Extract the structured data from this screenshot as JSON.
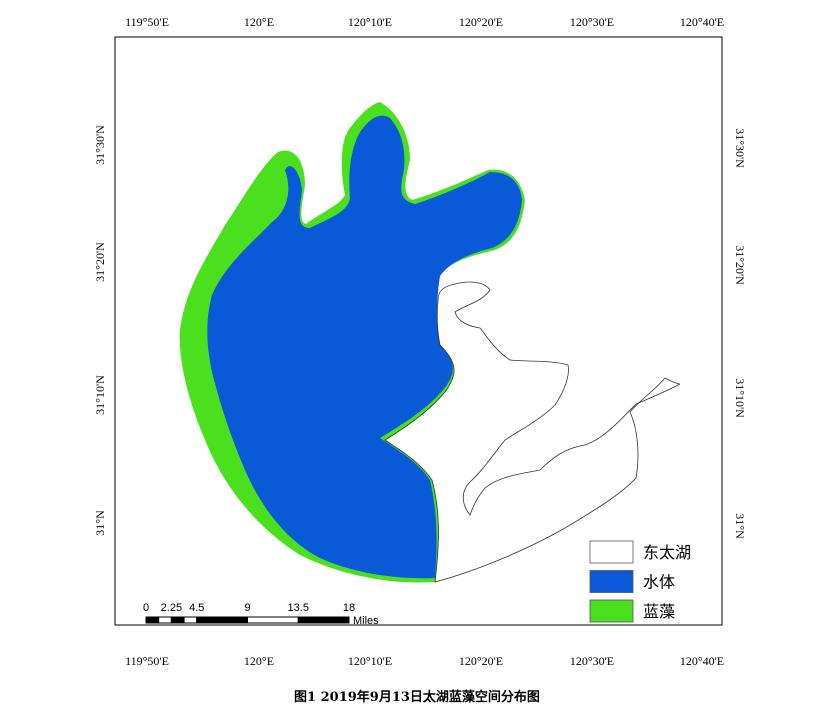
{
  "map": {
    "top_labels": [
      "119°50'E",
      "120°E",
      "120°10'E",
      "120°20'E",
      "120°30'E",
      "120°40'E"
    ],
    "bottom_labels": [
      "119°50'E",
      "120°E",
      "120°10'E",
      "120°20'E",
      "120°30'E",
      "120°40'E"
    ],
    "left_labels": [
      "31°30'N",
      "31°20'N",
      "31°10'N",
      "31°N"
    ],
    "right_labels": [
      "31°30'N",
      "31°20'N",
      "31°10'N",
      "31°N"
    ],
    "legend": [
      {
        "label": "东太湖",
        "color": "#ffffff"
      },
      {
        "label": "水体",
        "color": "#0a5ad7"
      },
      {
        "label": "蓝藻",
        "color": "#4be01e"
      }
    ],
    "scale_bar": {
      "ticks": [
        0,
        2.25,
        4.5,
        9,
        13.5,
        18
      ],
      "unit": "Miles"
    },
    "caption": "图1 2019年9月13日太湖蓝藻空间分布图"
  }
}
